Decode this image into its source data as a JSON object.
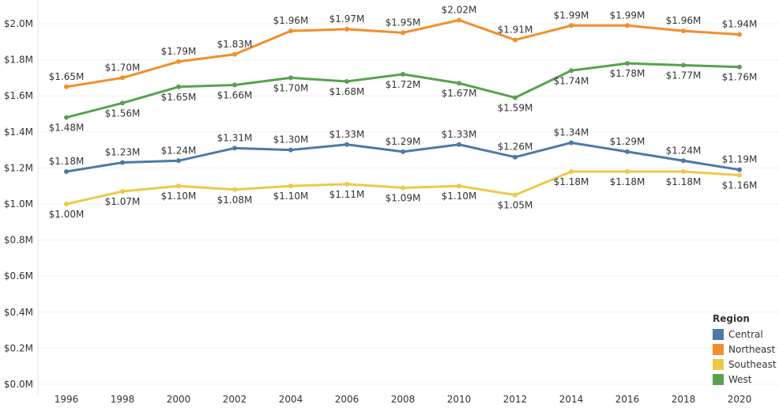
{
  "chart_data": {
    "type": "line",
    "title": "",
    "xlabel": "",
    "ylabel": "",
    "x": [
      1996,
      1998,
      2000,
      2002,
      2004,
      2006,
      2008,
      2010,
      2012,
      2014,
      2016,
      2018,
      2020
    ],
    "ylim": [
      0,
      2.0
    ],
    "yticks": [
      "$0.0M",
      "$0.2M",
      "$0.4M",
      "$0.6M",
      "$0.8M",
      "$1.0M",
      "$1.2M",
      "$1.4M",
      "$1.6M",
      "$1.8M",
      "$2.0M"
    ],
    "grid": true,
    "legend_placement": "bottom-right",
    "legend_title": "Region",
    "series": [
      {
        "name": "Central",
        "color": "#4e79a7",
        "values": [
          1.18,
          1.23,
          1.24,
          1.31,
          1.3,
          1.33,
          1.29,
          1.33,
          1.26,
          1.34,
          1.29,
          1.24,
          1.19
        ]
      },
      {
        "name": "Northeast",
        "color": "#f28e2b",
        "values": [
          1.65,
          1.7,
          1.79,
          1.83,
          1.96,
          1.97,
          1.95,
          2.02,
          1.91,
          1.99,
          1.99,
          1.96,
          1.94
        ]
      },
      {
        "name": "Southeast",
        "color": "#edc948",
        "values": [
          1.0,
          1.07,
          1.1,
          1.08,
          1.1,
          1.11,
          1.09,
          1.1,
          1.05,
          1.18,
          1.18,
          1.18,
          1.16
        ]
      },
      {
        "name": "West",
        "color": "#59a14f",
        "values": [
          1.48,
          1.56,
          1.65,
          1.66,
          1.7,
          1.68,
          1.72,
          1.67,
          1.59,
          1.74,
          1.78,
          1.77,
          1.76
        ]
      }
    ]
  }
}
